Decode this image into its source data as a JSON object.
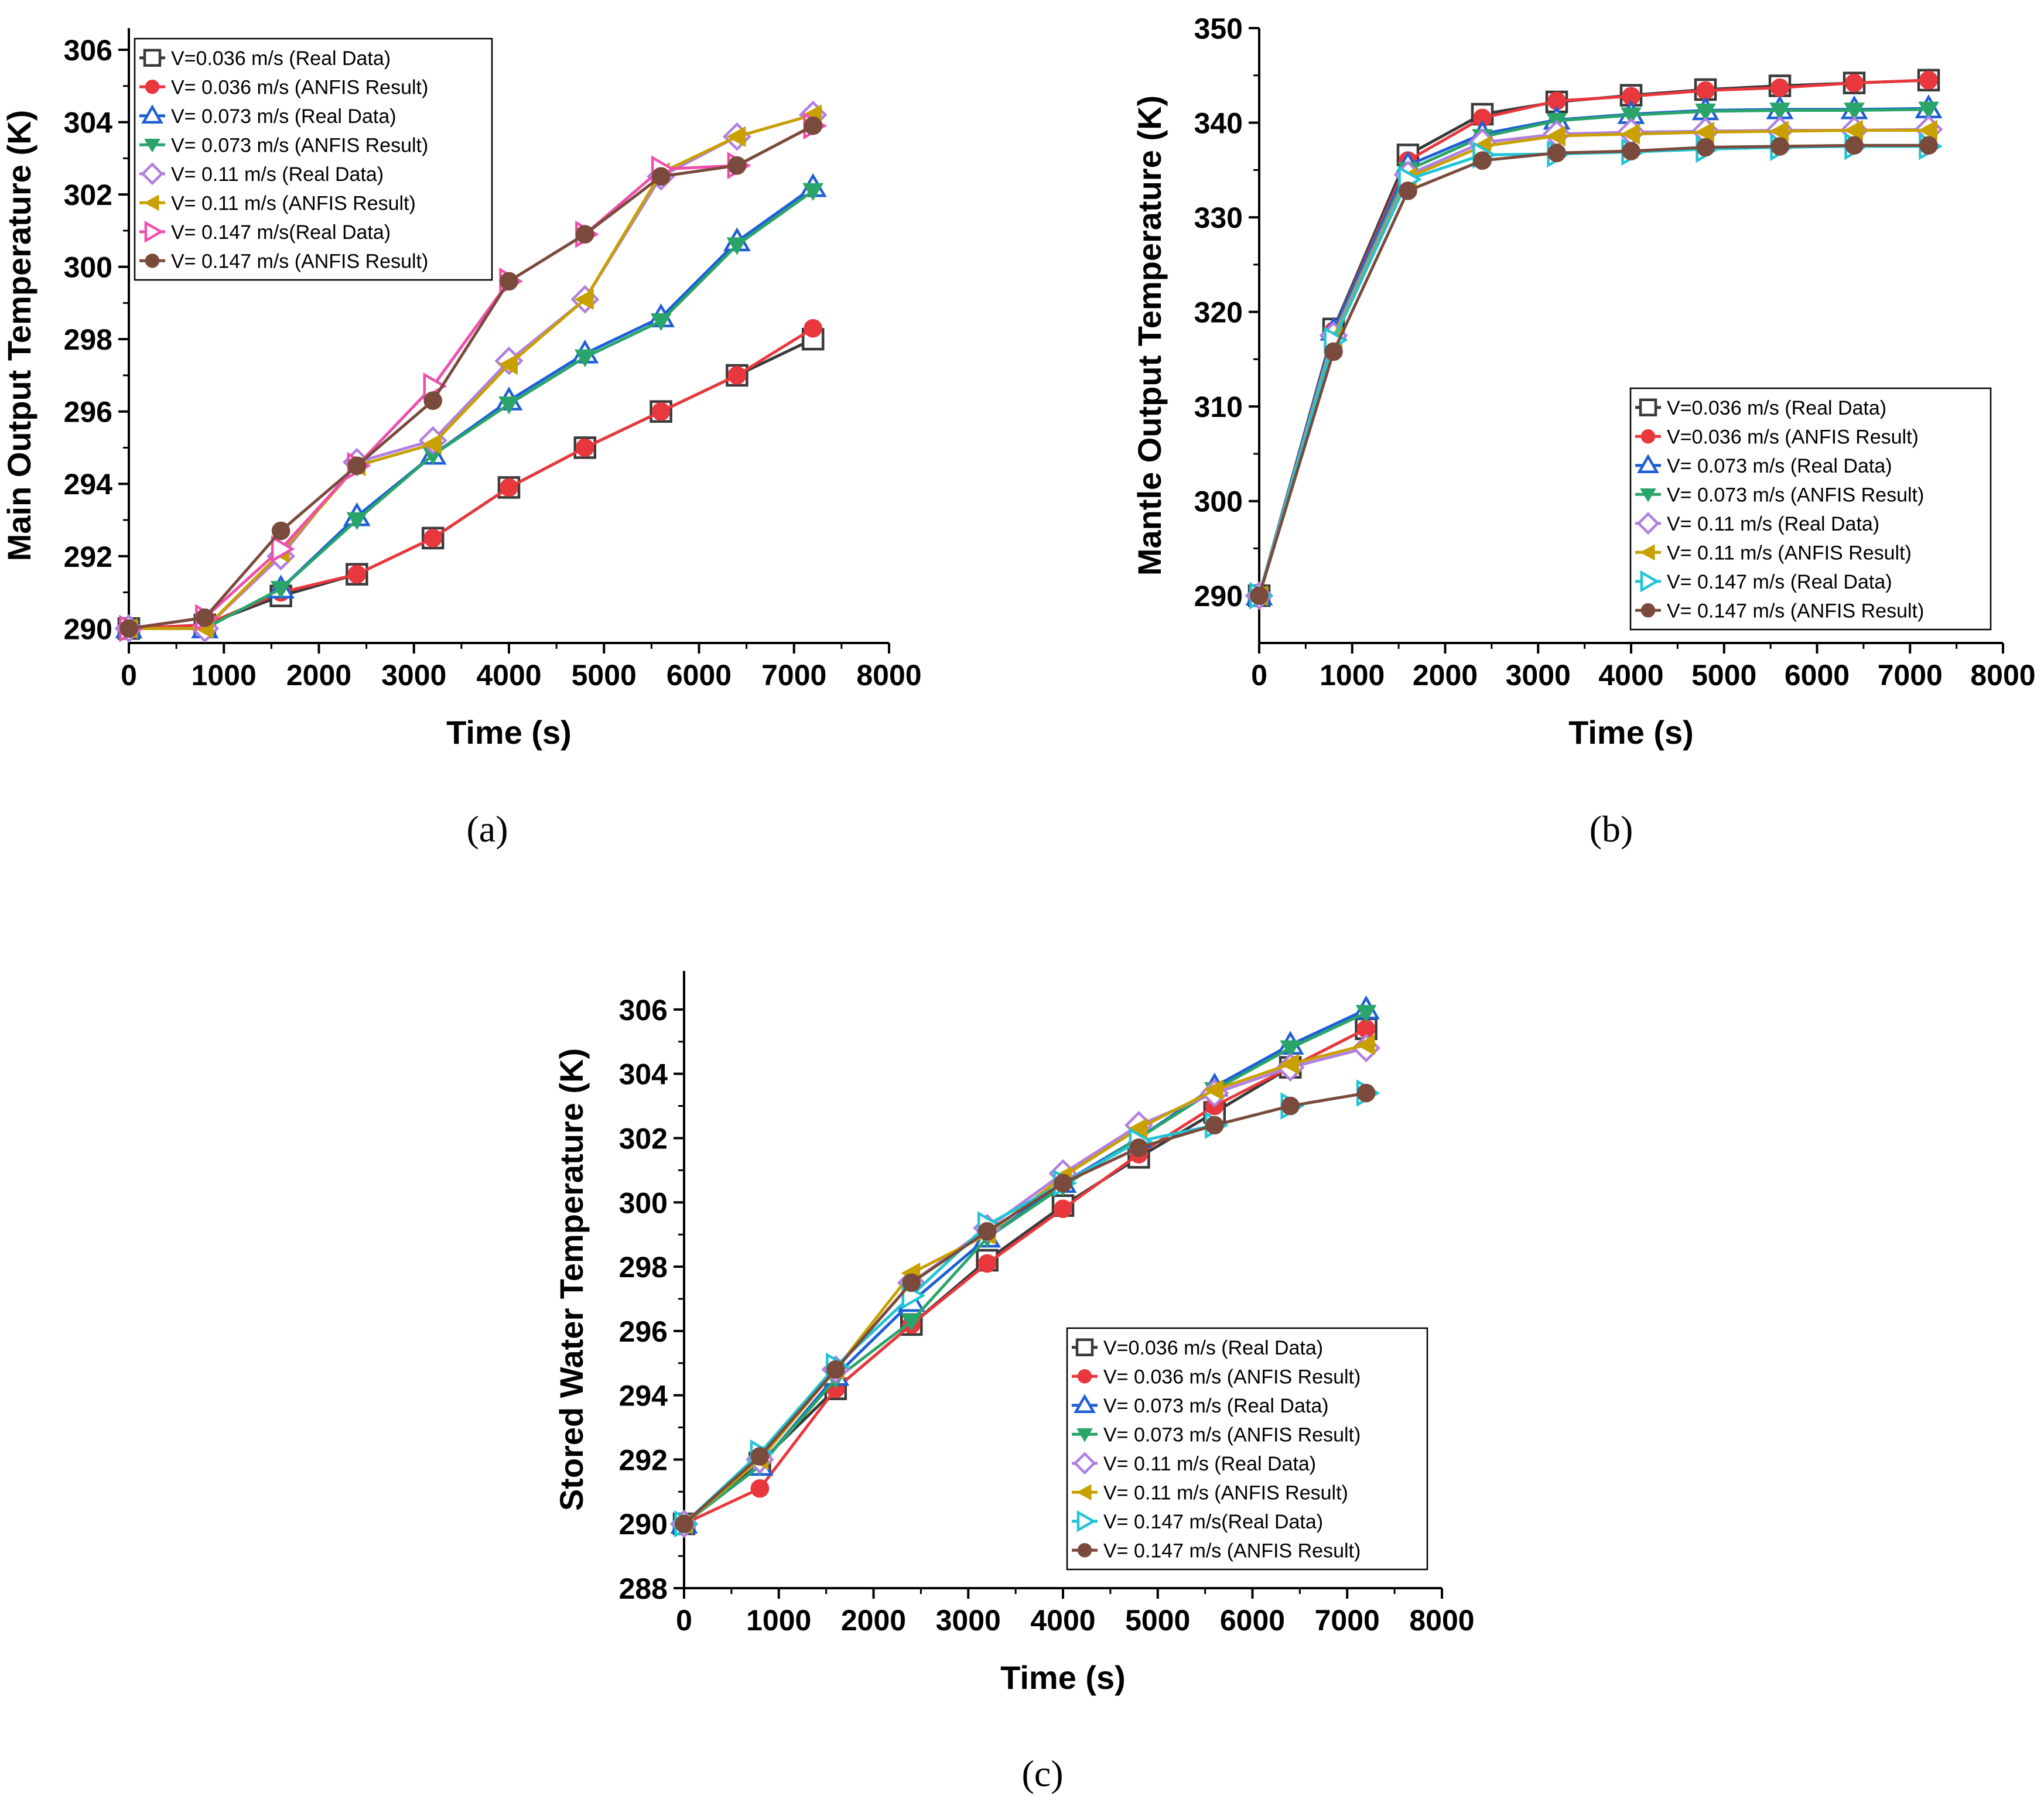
{
  "figure": {
    "panel_labels": [
      "(a)",
      "(b)",
      "(c)"
    ]
  },
  "colors": {
    "s1_real": "#3a3a3a",
    "s1_anfis": "#e8383d",
    "s2_real": "#1f5fd6",
    "s2_anfis": "#2aa56a",
    "s3_real": "#b07fe0",
    "s3_anfis": "#c8a000",
    "s4_real": "#ee4fae",
    "s4_real_c": "#22c4d6",
    "s4_anfis": "#7a4a3c"
  },
  "chart_data": [
    {
      "type": "line",
      "panel": "(a)",
      "title": "",
      "xlabel": "Time (s)",
      "ylabel": "Main Output Temperature (K)",
      "xlim": [
        0,
        8000
      ],
      "ylim": [
        289.6,
        306.6
      ],
      "xticks": [
        0,
        1000,
        2000,
        3000,
        4000,
        5000,
        6000,
        7000,
        8000
      ],
      "yticks": [
        290,
        292,
        294,
        296,
        298,
        300,
        302,
        304,
        306
      ],
      "x": [
        0,
        800,
        1600,
        2400,
        3200,
        4000,
        4800,
        5600,
        6400,
        7200
      ],
      "legend_position": "top-left",
      "series": [
        {
          "name": "V=0.036 m/s (Real Data)",
          "marker": "square",
          "color_key": "s1_real",
          "values": [
            290.0,
            290.1,
            290.9,
            291.5,
            292.5,
            293.9,
            295.0,
            296.0,
            297.0,
            298.0
          ]
        },
        {
          "name": "V= 0.036 m/s (ANFIS Result)",
          "marker": "circle",
          "color_key": "s1_anfis",
          "values": [
            290.0,
            290.1,
            291.0,
            291.5,
            292.5,
            293.9,
            295.0,
            296.0,
            297.0,
            298.3
          ]
        },
        {
          "name": "V= 0.073 m/s (Real Data)",
          "marker": "triangle-up",
          "color_key": "s2_real",
          "values": [
            290.0,
            290.0,
            291.1,
            293.1,
            294.8,
            296.3,
            297.6,
            298.6,
            300.7,
            302.2
          ]
        },
        {
          "name": "V= 0.073 m/s (ANFIS Result)",
          "marker": "triangle-down",
          "color_key": "s2_anfis",
          "values": [
            290.0,
            290.0,
            291.1,
            293.0,
            294.8,
            296.2,
            297.5,
            298.5,
            300.6,
            302.1
          ]
        },
        {
          "name": "V= 0.11 m/s (Real Data)",
          "marker": "diamond",
          "color_key": "s3_real",
          "values": [
            290.0,
            290.0,
            292.0,
            294.6,
            295.2,
            297.4,
            299.1,
            302.5,
            303.6,
            304.2
          ]
        },
        {
          "name": "V= 0.11 m/s (ANFIS Result)",
          "marker": "triangle-left",
          "color_key": "s3_anfis",
          "values": [
            290.0,
            290.0,
            292.1,
            294.5,
            295.1,
            297.3,
            299.1,
            302.6,
            303.6,
            304.2
          ]
        },
        {
          "name": "V= 0.147 m/s(Real Data)",
          "marker": "triangle-right",
          "color_key": "s4_real",
          "values": [
            290.0,
            290.3,
            292.2,
            294.5,
            296.7,
            299.6,
            300.9,
            302.7,
            302.8,
            303.9
          ]
        },
        {
          "name": "V= 0.147 m/s (ANFIS Result)",
          "marker": "circle",
          "color_key": "s4_anfis",
          "values": [
            290.0,
            290.3,
            292.7,
            294.5,
            296.3,
            299.6,
            300.9,
            302.5,
            302.8,
            303.9
          ]
        }
      ]
    },
    {
      "type": "line",
      "panel": "(b)",
      "title": "",
      "xlabel": "Time (s)",
      "ylabel": "Mantle Output Temperature (K)",
      "xlim": [
        0,
        8000
      ],
      "ylim": [
        285,
        350
      ],
      "xticks": [
        0,
        1000,
        2000,
        3000,
        4000,
        5000,
        6000,
        7000,
        8000
      ],
      "yticks": [
        290,
        300,
        310,
        320,
        330,
        340,
        350
      ],
      "x": [
        0,
        800,
        1600,
        2400,
        3200,
        4000,
        4800,
        5600,
        6400,
        7200
      ],
      "legend_position": "bottom-right",
      "series": [
        {
          "name": "V=0.036 m/s (Real Data)",
          "marker": "square",
          "color_key": "s1_real",
          "values": [
            290,
            318.2,
            336.6,
            340.9,
            342.2,
            342.9,
            343.5,
            343.9,
            344.2,
            344.5
          ]
        },
        {
          "name": "V=0.036 m/s (ANFIS Result)",
          "marker": "circle",
          "color_key": "s1_anfis",
          "values": [
            290,
            318.0,
            336.0,
            340.5,
            342.3,
            342.8,
            343.4,
            343.7,
            344.2,
            344.5
          ]
        },
        {
          "name": "V= 0.073 m/s (Real Data)",
          "marker": "triangle-up",
          "color_key": "s2_real",
          "values": [
            290,
            318.0,
            335.5,
            338.8,
            340.3,
            340.9,
            341.3,
            341.4,
            341.4,
            341.5
          ]
        },
        {
          "name": "V= 0.073 m/s (ANFIS Result)",
          "marker": "triangle-down",
          "color_key": "s2_anfis",
          "values": [
            290,
            317.5,
            335.0,
            338.5,
            340.2,
            340.8,
            341.2,
            341.3,
            341.3,
            341.4
          ]
        },
        {
          "name": "V= 0.11 m/s (Real Data)",
          "marker": "diamond",
          "color_key": "s3_real",
          "values": [
            290,
            317.5,
            334.5,
            337.9,
            338.8,
            339.0,
            339.1,
            339.2,
            339.2,
            339.3
          ]
        },
        {
          "name": "V= 0.11 m/s (ANFIS Result)",
          "marker": "triangle-left",
          "color_key": "s3_anfis",
          "values": [
            290,
            317.3,
            334.2,
            337.5,
            338.6,
            338.8,
            339.0,
            339.1,
            339.2,
            339.2
          ]
        },
        {
          "name": "V= 0.147 m/s (Real Data)",
          "marker": "triangle-right",
          "color_key": "s4_real_c",
          "values": [
            290,
            317.0,
            334.0,
            336.6,
            336.7,
            336.9,
            337.2,
            337.4,
            337.5,
            337.5
          ]
        },
        {
          "name": "V= 0.147 m/s (ANFIS Result)",
          "marker": "circle",
          "color_key": "s4_anfis",
          "values": [
            290,
            315.8,
            332.8,
            336.0,
            336.8,
            337.0,
            337.4,
            337.5,
            337.6,
            337.6
          ]
        }
      ]
    },
    {
      "type": "line",
      "panel": "(c)",
      "title": "",
      "xlabel": "Time (s)",
      "ylabel": "Stored Water Temperature (K)",
      "xlim": [
        0,
        8000
      ],
      "ylim": [
        288,
        307.2
      ],
      "xticks": [
        0,
        1000,
        2000,
        3000,
        4000,
        5000,
        6000,
        7000,
        8000
      ],
      "yticks": [
        288,
        290,
        292,
        294,
        296,
        298,
        300,
        302,
        304,
        306
      ],
      "x": [
        0,
        800,
        1600,
        2400,
        3200,
        4000,
        4800,
        5600,
        6400,
        7200
      ],
      "legend_position": "bottom-right",
      "series": [
        {
          "name": "V=0.036 m/s (Real Data)",
          "marker": "square",
          "color_key": "s1_real",
          "values": [
            290.0,
            291.9,
            294.2,
            296.2,
            298.2,
            299.9,
            301.4,
            302.8,
            304.2,
            305.4
          ]
        },
        {
          "name": "V= 0.036 m/s (ANFIS Result)",
          "marker": "circle",
          "color_key": "s1_anfis",
          "values": [
            290.0,
            291.1,
            294.2,
            296.2,
            298.1,
            299.8,
            301.5,
            303.0,
            304.2,
            305.4
          ]
        },
        {
          "name": "V= 0.073 m/s (Real Data)",
          "marker": "triangle-up",
          "color_key": "s2_real",
          "values": [
            290.0,
            291.8,
            294.6,
            296.9,
            298.9,
            300.6,
            302.0,
            303.6,
            304.9,
            306.0
          ]
        },
        {
          "name": "V= 0.073 m/s (ANFIS Result)",
          "marker": "triangle-down",
          "color_key": "s2_anfis",
          "values": [
            290.0,
            291.8,
            294.5,
            296.3,
            298.9,
            300.5,
            302.0,
            303.5,
            304.8,
            305.9
          ]
        },
        {
          "name": "V= 0.11 m/s (Real Data)",
          "marker": "diamond",
          "color_key": "s3_real",
          "values": [
            290.0,
            292.0,
            294.8,
            297.5,
            299.2,
            300.9,
            302.4,
            303.4,
            304.2,
            304.8
          ]
        },
        {
          "name": "V= 0.11 m/s (ANFIS Result)",
          "marker": "triangle-left",
          "color_key": "s3_anfis",
          "values": [
            290.0,
            292.0,
            294.8,
            297.8,
            299.0,
            300.8,
            302.3,
            303.5,
            304.3,
            304.9
          ]
        },
        {
          "name": "V= 0.147 m/s(Real Data)",
          "marker": "triangle-right",
          "color_key": "s4_real_c",
          "values": [
            290.0,
            292.2,
            294.9,
            297.1,
            299.3,
            300.6,
            301.9,
            302.4,
            303.0,
            303.4
          ]
        },
        {
          "name": "V= 0.147 m/s (ANFIS Result)",
          "marker": "circle",
          "color_key": "s4_anfis",
          "values": [
            290.0,
            292.1,
            294.8,
            297.5,
            299.1,
            300.6,
            301.7,
            302.4,
            303.0,
            303.4
          ]
        }
      ]
    }
  ]
}
